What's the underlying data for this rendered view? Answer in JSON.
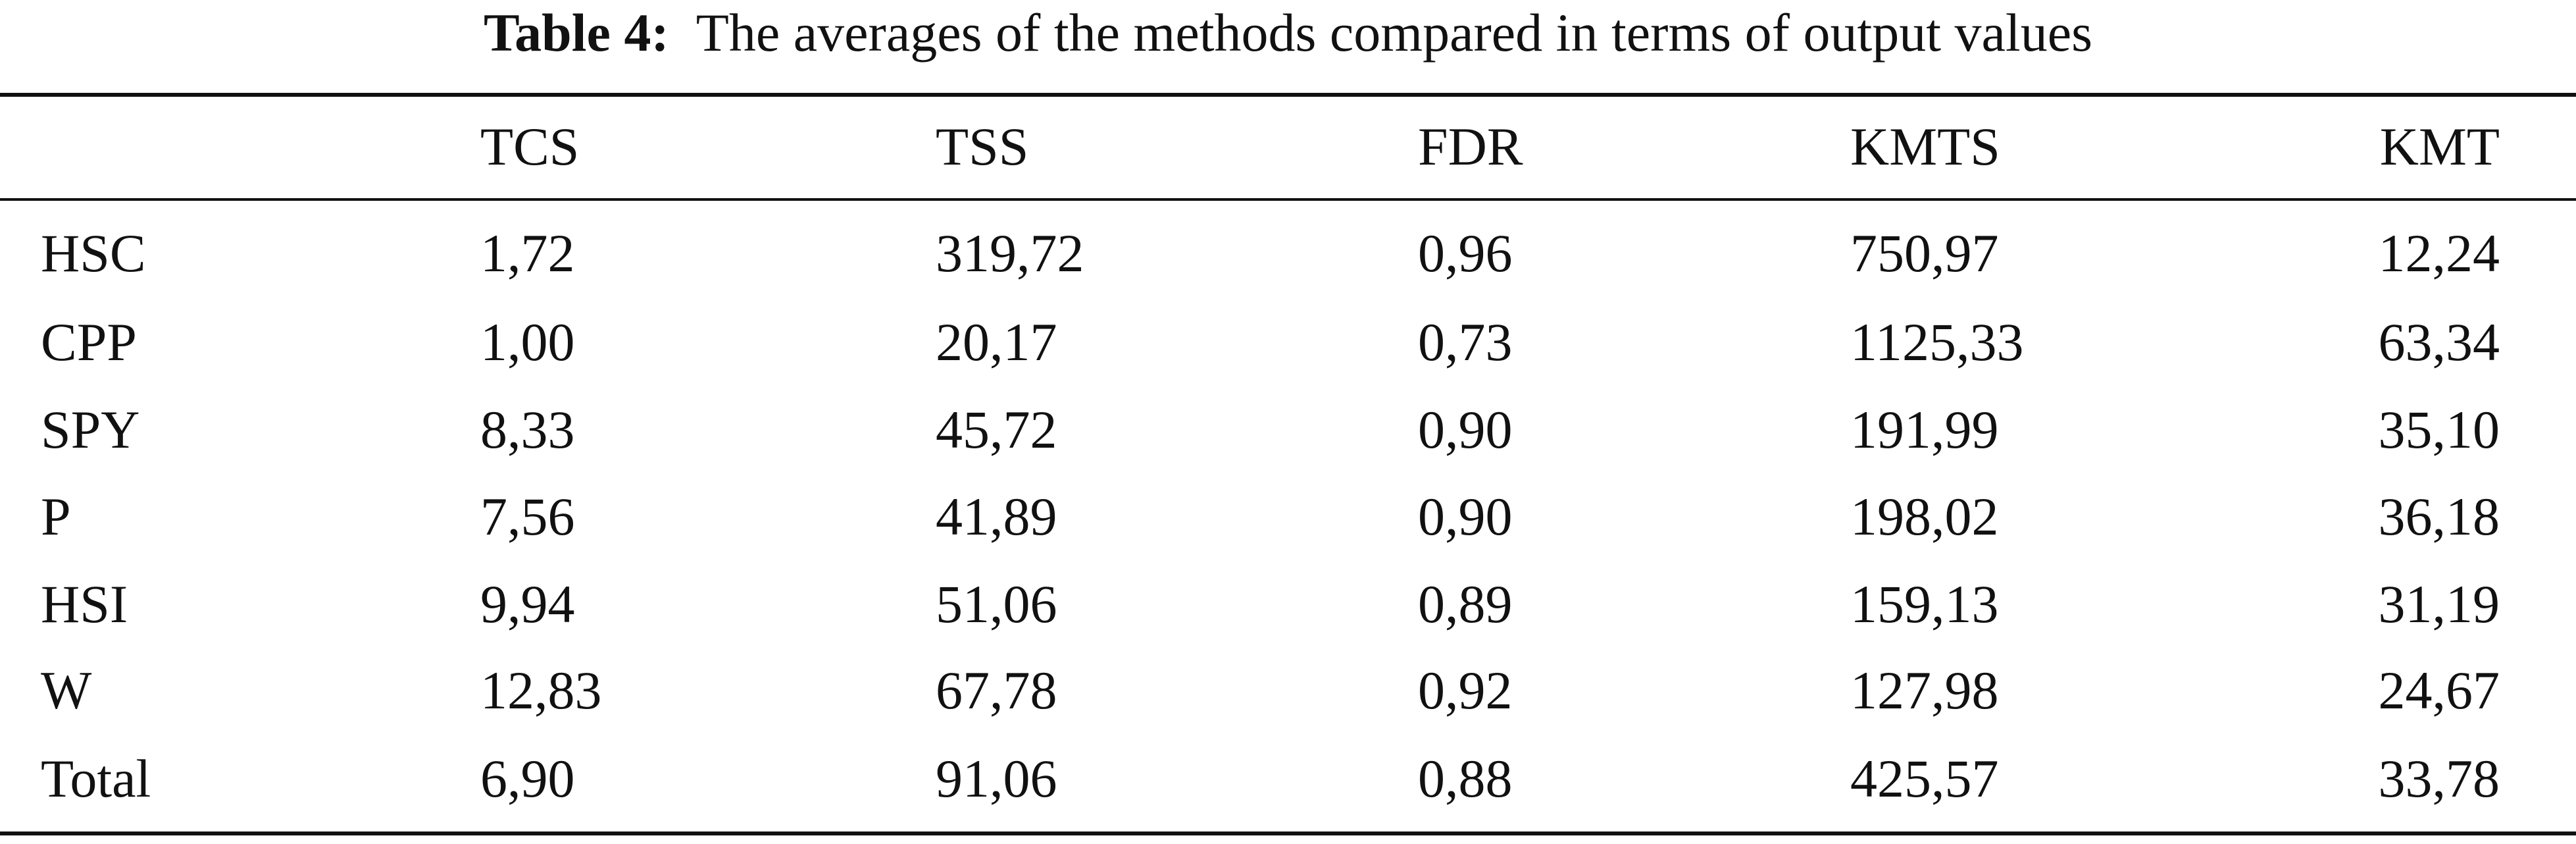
{
  "caption": {
    "label": "Table 4:",
    "text": "The averages of the methods compared in terms of output values"
  },
  "table": {
    "headers": [
      "",
      "TCS",
      "TSS",
      "FDR",
      "KMTS",
      "KMT"
    ],
    "rows": [
      [
        "HSC",
        "1,72",
        "319,72",
        "0,96",
        "750,97",
        "12,24"
      ],
      [
        "CPP",
        "1,00",
        "20,17",
        "0,73",
        "1125,33",
        "63,34"
      ],
      [
        "SPY",
        "8,33",
        "45,72",
        "0,90",
        "191,99",
        "35,10"
      ],
      [
        "P",
        "7,56",
        "41,89",
        "0,90",
        "198,02",
        "36,18"
      ],
      [
        "HSI",
        "9,94",
        "51,06",
        "0,89",
        "159,13",
        "31,19"
      ],
      [
        "W",
        "12,83",
        "67,78",
        "0,92",
        "127,98",
        "24,67"
      ],
      [
        "Total",
        "6,90",
        "91,06",
        "0,88",
        "425,57",
        "33,78"
      ]
    ]
  }
}
